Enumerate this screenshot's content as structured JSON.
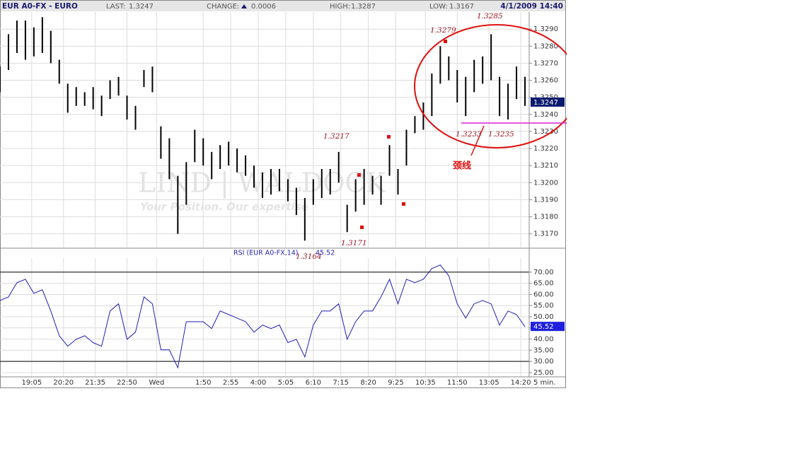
{
  "header": {
    "symbol": "EUR A0-FX - EURO",
    "last_label": "LAST:",
    "last": 1.3247,
    "change_label": "CHANGE:",
    "change": 0.0006,
    "high_label": "HIGH:",
    "high": 1.3287,
    "low_label": "LOW:",
    "low": 1.3167,
    "datetime": "4/1/2009 14:40"
  },
  "watermark": {
    "brand": "LIND | WALDOCK",
    "tagline": "Your Position. Our expertise"
  },
  "chart_data": [
    {
      "type": "hilo",
      "color": "#000000",
      "xlim": [
        0,
        250
      ],
      "ylim": [
        1.3162,
        1.33
      ],
      "grid": true,
      "x": [
        0,
        4,
        8,
        12,
        16,
        20,
        24,
        28,
        32,
        36,
        40,
        44,
        48,
        52,
        56,
        60,
        64,
        68,
        72,
        76,
        80,
        84,
        88,
        92,
        96,
        100,
        104,
        108,
        112,
        116,
        120,
        124,
        128,
        132,
        136,
        140,
        144,
        148,
        152,
        156,
        160,
        164,
        168,
        172,
        176,
        180,
        184,
        188,
        192,
        196,
        200,
        204,
        208,
        212,
        216,
        220,
        224,
        228,
        232,
        236,
        240,
        244,
        248
      ],
      "high": [
        1.3268,
        1.3287,
        1.3295,
        1.3295,
        1.3291,
        1.3297,
        1.3289,
        1.3272,
        1.3258,
        1.3256,
        1.3253,
        1.3256,
        1.3251,
        1.326,
        1.3262,
        1.3251,
        1.3245,
        1.3266,
        1.3268,
        1.3233,
        1.3226,
        1.3204,
        1.3212,
        1.3231,
        1.3226,
        1.3218,
        1.3222,
        1.3224,
        1.322,
        1.3216,
        1.321,
        1.3206,
        1.3208,
        1.3208,
        1.3202,
        1.3197,
        1.3191,
        1.3202,
        1.3208,
        1.3208,
        1.3218,
        1.3187,
        1.3202,
        1.3208,
        1.3204,
        1.3204,
        1.3222,
        1.3208,
        1.3231,
        1.3239,
        1.3247,
        1.3264,
        1.328,
        1.3274,
        1.3266,
        1.3262,
        1.3272,
        1.3274,
        1.3287,
        1.3262,
        1.3258,
        1.3268,
        1.3262
      ],
      "low": [
        1.3253,
        1.3266,
        1.3276,
        1.3272,
        1.3274,
        1.3276,
        1.327,
        1.3258,
        1.3241,
        1.3245,
        1.3245,
        1.3243,
        1.3239,
        1.3249,
        1.3251,
        1.3237,
        1.3231,
        1.3256,
        1.3253,
        1.3214,
        1.3202,
        1.317,
        1.3187,
        1.3212,
        1.321,
        1.3202,
        1.3208,
        1.321,
        1.3206,
        1.3204,
        1.3197,
        1.3191,
        1.3193,
        1.3195,
        1.3189,
        1.3181,
        1.3166,
        1.3187,
        1.3191,
        1.3193,
        1.32,
        1.3171,
        1.3183,
        1.3187,
        1.3193,
        1.3187,
        1.3204,
        1.3193,
        1.321,
        1.3229,
        1.3231,
        1.3239,
        1.3258,
        1.326,
        1.3247,
        1.3239,
        1.3253,
        1.3258,
        1.326,
        1.3239,
        1.3237,
        1.3249,
        1.3245
      ],
      "yticks": [
        {
          "value": 1.317,
          "label": "1.3170"
        },
        {
          "value": 1.318,
          "label": "1.3180"
        },
        {
          "value": 1.319,
          "label": "1.3190"
        },
        {
          "value": 1.32,
          "label": "1.3200"
        },
        {
          "value": 1.321,
          "label": "1.3210"
        },
        {
          "value": 1.322,
          "label": "1.3220"
        },
        {
          "value": 1.323,
          "label": "1.3230"
        },
        {
          "value": 1.324,
          "label": "1.3240"
        },
        {
          "value": 1.325,
          "label": "1.3250"
        },
        {
          "value": 1.326,
          "label": "1.3260"
        },
        {
          "value": 1.327,
          "label": "1.3270"
        },
        {
          "value": 1.328,
          "label": "1.3280"
        },
        {
          "value": 1.329,
          "label": "1.3290"
        }
      ],
      "annotations": [
        "1.3279",
        "1.3285",
        "1.3217",
        "1.3233",
        "1.3235",
        "1.3171",
        "1.3164",
        "颈线"
      ]
    },
    {
      "type": "line",
      "title": "RSI (EUR A0-FX,14)",
      "color": "#1f1fb4",
      "xlim": [
        0,
        250
      ],
      "ylim": [
        23.4,
        76.3
      ],
      "grid": true,
      "levels": [
        70,
        30
      ],
      "x_unit": "5 min.",
      "x": [
        0,
        4,
        8,
        12,
        16,
        20,
        24,
        28,
        32,
        36,
        40,
        44,
        48,
        52,
        56,
        60,
        64,
        68,
        72,
        76,
        80,
        84,
        88,
        92,
        96,
        100,
        104,
        108,
        112,
        116,
        120,
        124,
        128,
        132,
        136,
        140,
        144,
        148,
        152,
        156,
        160,
        164,
        168,
        172,
        176,
        180,
        184,
        188,
        192,
        196,
        200,
        204,
        208,
        212,
        216,
        220,
        224,
        228,
        232,
        236,
        240,
        244,
        248
      ],
      "series": [
        {
          "name": "RSI",
          "color": "#1f1fb4",
          "values": [
            57.3,
            58.9,
            65.3,
            66.8,
            60.5,
            62.1,
            52.6,
            41.5,
            36.8,
            39.9,
            41.5,
            38.4,
            36.8,
            52.6,
            55.8,
            39.9,
            43.1,
            58.9,
            55.8,
            35.2,
            35.2,
            27.2,
            47.8,
            47.8,
            47.8,
            44.7,
            52.6,
            51.0,
            49.4,
            47.8,
            43.1,
            46.3,
            44.7,
            46.3,
            38.4,
            39.9,
            32.0,
            46.3,
            52.6,
            52.6,
            55.8,
            39.9,
            47.8,
            52.6,
            52.6,
            58.9,
            66.8,
            55.8,
            66.8,
            65.3,
            66.8,
            71.6,
            73.2,
            68.4,
            55.8,
            49.4,
            55.8,
            57.3,
            55.8,
            46.3,
            52.6,
            51.0,
            45.52
          ]
        }
      ],
      "yticks": [
        {
          "value": 25,
          "label": "25.00"
        },
        {
          "value": 30,
          "label": "30.00"
        },
        {
          "value": 35,
          "label": "35.00"
        },
        {
          "value": 40,
          "label": "40.00"
        },
        {
          "value": 45,
          "label": "45.00"
        },
        {
          "value": 50,
          "label": "50.00"
        },
        {
          "value": 55,
          "label": "55.00"
        },
        {
          "value": 60,
          "label": "60.00"
        },
        {
          "value": 65,
          "label": "65.00"
        },
        {
          "value": 70,
          "label": "70.00"
        }
      ],
      "xticks": [
        {
          "value": 15,
          "label": "19:05"
        },
        {
          "value": 30,
          "label": "20:20"
        },
        {
          "value": 45,
          "label": "21:35"
        },
        {
          "value": 60,
          "label": "22:50"
        },
        {
          "value": 74,
          "label": "Wed"
        },
        {
          "value": 96,
          "label": "1:50"
        },
        {
          "value": 109,
          "label": "2:55"
        },
        {
          "value": 122,
          "label": "4:00"
        },
        {
          "value": 135,
          "label": "5:05"
        },
        {
          "value": 148,
          "label": "6:10"
        },
        {
          "value": 161,
          "label": "7:15"
        },
        {
          "value": 174,
          "label": "8:20"
        },
        {
          "value": 187,
          "label": "9:25"
        },
        {
          "value": 201,
          "label": "10:35"
        },
        {
          "value": 216,
          "label": "11:50"
        },
        {
          "value": 231,
          "label": "13:05"
        },
        {
          "value": 246,
          "label": "14:20"
        }
      ]
    }
  ]
}
